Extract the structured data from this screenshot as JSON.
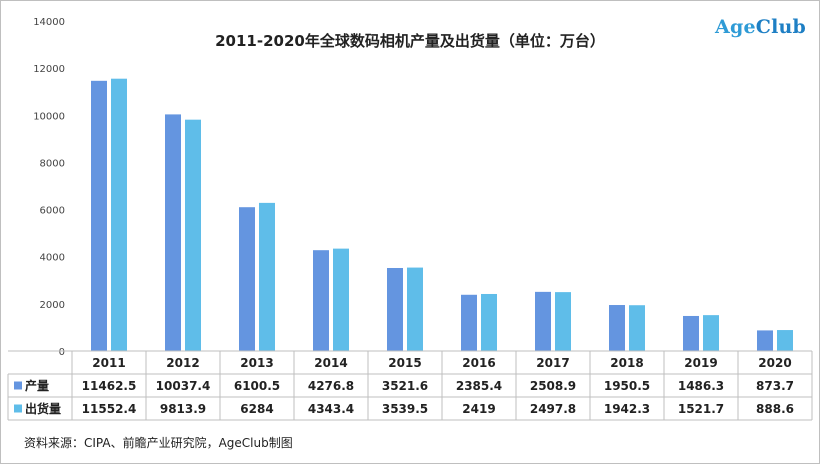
{
  "logo": {
    "age": "Age",
    "club": "Club"
  },
  "chart_data": {
    "type": "bar",
    "title": "2011-2020年全球数码相机产量及出货量（单位：万台）",
    "categories": [
      "2011",
      "2012",
      "2013",
      "2014",
      "2015",
      "2016",
      "2017",
      "2018",
      "2019",
      "2020"
    ],
    "series": [
      {
        "name": "产量",
        "color": "#6495e0",
        "values": [
          11462.5,
          10037.4,
          6100.5,
          4276.8,
          3521.6,
          2385.4,
          2508.9,
          1950.5,
          1486.3,
          873.7
        ],
        "labels": [
          "11462.5",
          "10037.4",
          "6100.5",
          "4276.8",
          "3521.6",
          "2385.4",
          "2508.9",
          "1950.5",
          "1486.3",
          "873.7"
        ]
      },
      {
        "name": "出货量",
        "color": "#5fbde9",
        "values": [
          11552.4,
          9813.9,
          6284,
          4343.4,
          3539.5,
          2419,
          2497.8,
          1942.3,
          1521.7,
          888.6
        ],
        "labels": [
          "11552.4",
          "9813.9",
          "6284",
          "4343.4",
          "3539.5",
          "2419",
          "2497.8",
          "1942.3",
          "1521.7",
          "888.6"
        ]
      }
    ],
    "ylim": [
      0,
      14000
    ],
    "yticks": [
      "0",
      "2000",
      "4000",
      "6000",
      "8000",
      "10000",
      "12000",
      "14000"
    ],
    "legend": "table-left",
    "grid": false
  },
  "source": "资料来源：CIPA、前瞻产业研究院，AgeClub制图"
}
